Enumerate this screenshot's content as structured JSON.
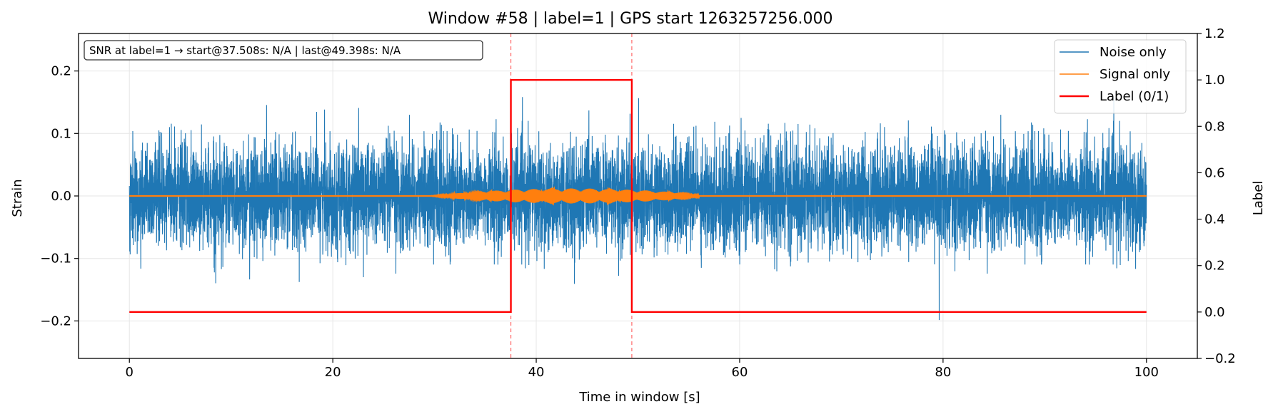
{
  "chart_data": {
    "type": "line",
    "title": "Window #58  |  label=1  |  GPS start 1263257256.000",
    "xlabel": "Time in window [s]",
    "ylabel_left": "Strain",
    "ylabel_right": "Label",
    "xlim": [
      -5,
      105
    ],
    "ylim_left": [
      -0.26,
      0.26
    ],
    "ylim_right": [
      -0.2,
      1.2
    ],
    "x_ticks": [
      0,
      20,
      40,
      60,
      80,
      100
    ],
    "x_tick_labels": [
      "0",
      "20",
      "40",
      "60",
      "80",
      "100"
    ],
    "y_left_ticks": [
      -0.2,
      -0.1,
      0.0,
      0.1,
      0.2
    ],
    "y_left_tick_labels": [
      "−0.2",
      "−0.1",
      "0.0",
      "0.1",
      "0.2"
    ],
    "y_right_ticks": [
      -0.2,
      0.0,
      0.2,
      0.4,
      0.6,
      0.8,
      1.0,
      1.2
    ],
    "y_right_tick_labels": [
      "−0.2",
      "0.0",
      "0.2",
      "0.4",
      "0.6",
      "0.8",
      "1.0",
      "1.2"
    ],
    "grid": true,
    "legend_position": "top-right",
    "annotation": "SNR at label=1 → start@37.508s: N/A | last@49.398s: N/A",
    "vlines": [
      37.508,
      49.398
    ],
    "series": [
      {
        "name": "Noise only",
        "axis": "left",
        "color": "#1f77b4",
        "kind": "noise",
        "x_range": [
          0,
          100
        ],
        "center": 0.0,
        "typical_envelope": 0.12,
        "peak_envelope": 0.23
      },
      {
        "name": "Signal only",
        "axis": "left",
        "color": "#ff7f0e",
        "kind": "burst",
        "x_range": [
          0,
          100
        ],
        "center": 0.0,
        "active_range": [
          28,
          56
        ],
        "peak_time": 43.5,
        "peak_amplitude": 0.012
      },
      {
        "name": "Label (0/1)",
        "axis": "right",
        "color": "#ff0000",
        "kind": "step",
        "x": [
          0,
          37.508,
          37.508,
          49.398,
          49.398,
          100
        ],
        "y": [
          0,
          0,
          1,
          1,
          0,
          0
        ]
      }
    ]
  }
}
